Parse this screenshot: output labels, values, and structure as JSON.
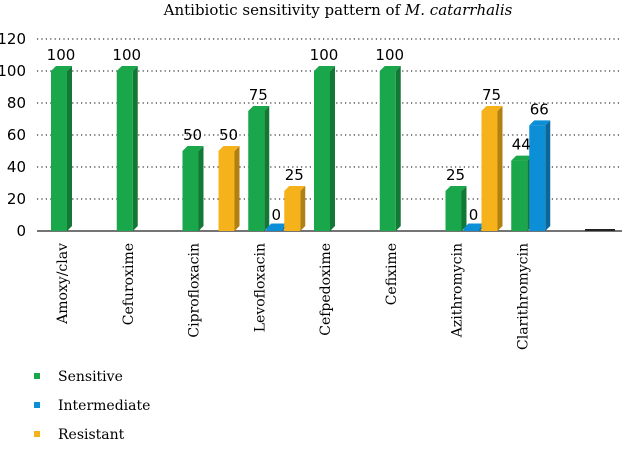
{
  "chart_data": {
    "type": "bar",
    "title": "Antibiotic sensitivity pattern of ",
    "title_italic": "M. catarrhalis",
    "categories": [
      "Amoxy/clav",
      "Cefuroxime",
      "Ciprofloxacin",
      "Levofloxacin",
      "Cefpedoxime",
      "Cefixime",
      "Azithromycin",
      "Clarithromycin"
    ],
    "series": [
      {
        "name": "Sensitive",
        "color": "#1aa64a",
        "values": [
          100,
          100,
          50,
          75,
          100,
          100,
          25,
          44
        ],
        "labels": [
          "100",
          "100",
          "50",
          "75",
          "100",
          "100",
          "25",
          "44"
        ]
      },
      {
        "name": "Intermediate",
        "color": "#0c8fd6",
        "values": [
          null,
          null,
          null,
          0,
          null,
          null,
          0,
          66
        ],
        "labels": [
          null,
          null,
          null,
          "0",
          null,
          null,
          "0",
          "66"
        ]
      },
      {
        "name": "Resistant",
        "color": "#f5b21b",
        "values": [
          null,
          null,
          50,
          25,
          null,
          null,
          75,
          null
        ],
        "labels": [
          null,
          null,
          "50",
          "25",
          null,
          null,
          "75",
          null
        ]
      }
    ],
    "ylim": [
      0,
      120
    ],
    "yticks": [
      0,
      20,
      40,
      60,
      80,
      100,
      120
    ],
    "grid": "dotted horizontal",
    "legend_position": "bottom-left",
    "xlabel": "",
    "ylabel": ""
  }
}
